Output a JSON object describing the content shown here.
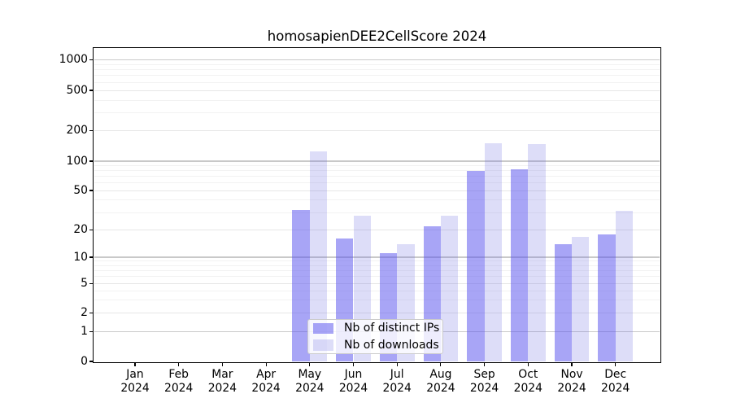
{
  "title": "homosapienDEE2CellScore 2024",
  "chart_data": {
    "type": "bar",
    "title": "homosapienDEE2CellScore 2024",
    "x_categories": [
      "Jan",
      "Feb",
      "Mar",
      "Apr",
      "May",
      "Jun",
      "Jul",
      "Aug",
      "Sep",
      "Oct",
      "Nov",
      "Dec"
    ],
    "x_year_label": "2024",
    "series": [
      {
        "name": "Nb of distinct IPs",
        "color_hex": "#a8a5f6",
        "fill": "rgba(88,82,238,0.52)",
        "values": [
          0,
          0,
          0,
          0,
          32,
          16,
          11,
          22,
          80,
          83,
          14,
          18
        ]
      },
      {
        "name": "Nb of downloads",
        "color_hex": "#dcdcf8",
        "fill": "rgba(100,100,225,0.22)",
        "values": [
          0,
          0,
          0,
          0,
          125,
          28,
          14,
          28,
          150,
          148,
          17,
          31
        ]
      }
    ],
    "y_ticks": [
      0,
      1,
      2,
      5,
      10,
      20,
      50,
      100,
      200,
      500,
      1000
    ],
    "y_scale": "symlog",
    "ylim": [
      0,
      1300
    ],
    "grid": true,
    "legend_position": "lower center"
  },
  "colors": {
    "axis": "#000000",
    "grid_major": "#c9c9c9",
    "grid_mid": "#e6e6e6",
    "grid_minor": "#f2f2f2",
    "background": "#ffffff"
  }
}
